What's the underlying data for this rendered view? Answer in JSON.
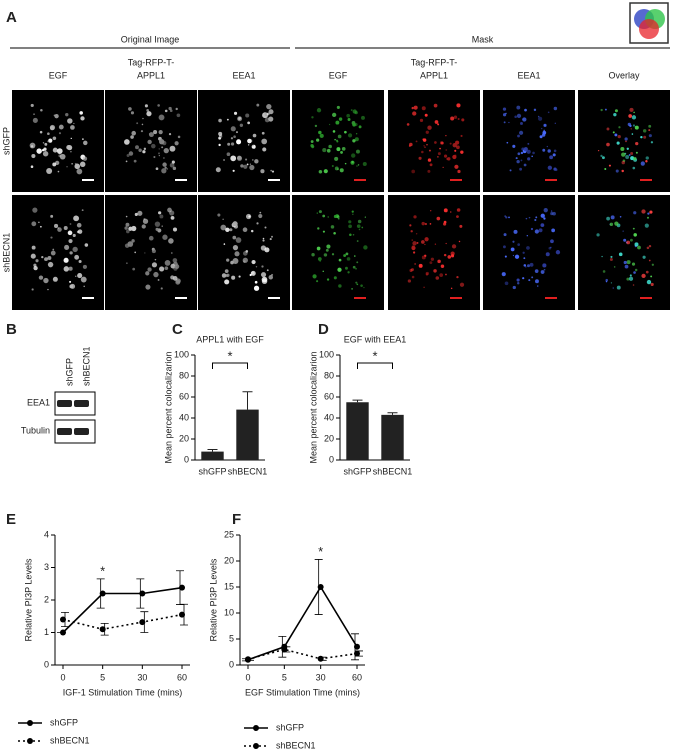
{
  "figure": {
    "panel_a": {
      "label": "A",
      "groups": [
        "Original Image",
        "Mask"
      ],
      "columns": [
        [
          "EGF"
        ],
        [
          "Tag-RFP-T-",
          "APPL1"
        ],
        [
          "EEA1"
        ],
        [
          "EGF"
        ],
        [
          "Tag-RFP-T-",
          "APPL1"
        ],
        [
          "EEA1"
        ],
        [
          "Overlay"
        ]
      ],
      "rows": [
        "shGFP",
        "shBECN1"
      ]
    },
    "panel_b": {
      "label": "B",
      "lanes": [
        "shGFP",
        "shBECN1"
      ],
      "bands": [
        "EEA1",
        "Tubulin"
      ]
    }
  },
  "chart_data": [
    {
      "type": "bar",
      "label": "C",
      "title": "APPL1 with EGF",
      "y_label": "Mean percent colocalizarion",
      "categories": [
        "shGFP",
        "shBECN1"
      ],
      "values": [
        8,
        48
      ],
      "errors": [
        2,
        17
      ],
      "color": "#222222",
      "ylim": [
        0,
        100
      ],
      "yticks": [
        0,
        20,
        40,
        60,
        80,
        100
      ],
      "significance": "*"
    },
    {
      "type": "bar",
      "label": "D",
      "title": "EGF with EEA1",
      "y_label": "Mean percent colocalizarion",
      "categories": [
        "shGFP",
        "shBECN1"
      ],
      "values": [
        55,
        43
      ],
      "errors": [
        2,
        2
      ],
      "color": "#222222",
      "ylim": [
        0,
        100
      ],
      "yticks": [
        0,
        20,
        40,
        60,
        80,
        100
      ],
      "significance": "*"
    },
    {
      "type": "line",
      "label": "E",
      "y_label": "Relative PI3P Levels",
      "x_label": "IGF-1 Stimulation Time (mins)",
      "categories": [
        "0",
        "5",
        "30",
        "60"
      ],
      "ylim": [
        0,
        4
      ],
      "yticks": [
        0,
        1,
        2,
        3,
        4
      ],
      "significance": "*",
      "series": [
        {
          "name": "shGFP",
          "color": "#000000",
          "line_style": "solid",
          "values": [
            1,
            2.2,
            2.2,
            2.38
          ],
          "errors": [
            0,
            0.45,
            0.45,
            0.52
          ]
        },
        {
          "name": "shBECN1",
          "color": "#000000",
          "line_style": "dotted",
          "values": [
            1.4,
            1.1,
            1.32,
            1.55
          ],
          "errors": [
            0.22,
            0.18,
            0.32,
            0.32
          ]
        }
      ]
    },
    {
      "type": "line",
      "label": "F",
      "y_label": "Relative PI3P Levels",
      "x_label": "EGF Stimulation Time (mins)",
      "categories": [
        "0",
        "5",
        "30",
        "60"
      ],
      "ylim": [
        0,
        25
      ],
      "yticks": [
        0,
        5,
        10,
        15,
        20,
        25
      ],
      "significance": "*",
      "series": [
        {
          "name": "shGFP",
          "color": "#000000",
          "line_style": "solid",
          "values": [
            1,
            3.5,
            15,
            3.5
          ],
          "errors": [
            0.2,
            2,
            5.3,
            2.5
          ]
        },
        {
          "name": "shBECN1",
          "color": "#000000",
          "line_style": "dotted",
          "values": [
            1.1,
            3.0,
            1.2,
            2.2
          ],
          "errors": [
            0.2,
            0.5,
            0.3,
            0.5
          ]
        }
      ]
    }
  ]
}
